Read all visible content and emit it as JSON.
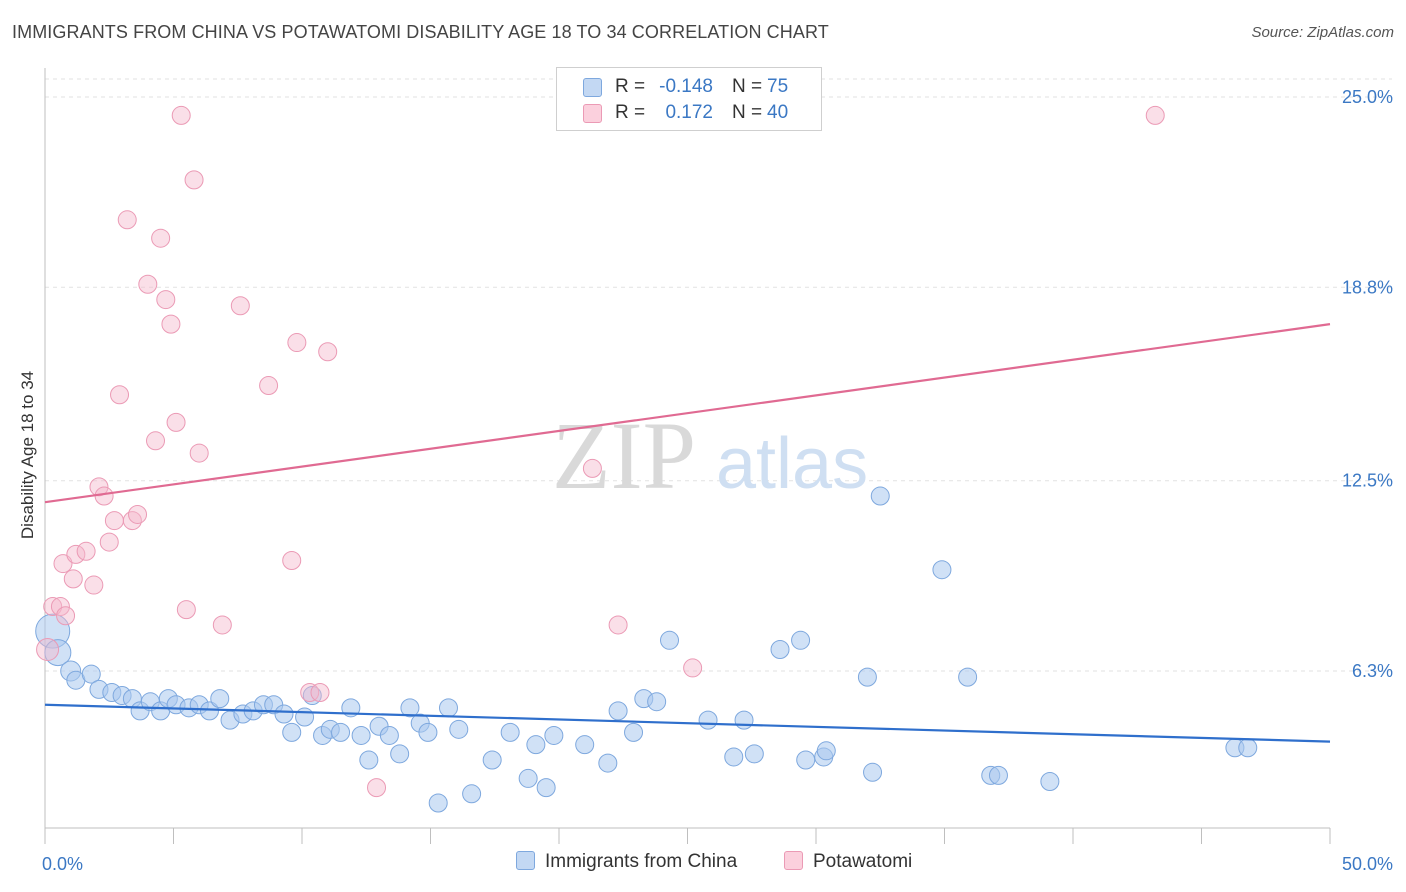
{
  "title": "IMMIGRANTS FROM CHINA VS POTAWATOMI DISABILITY AGE 18 TO 34 CORRELATION CHART",
  "source": "Source: ZipAtlas.com",
  "watermark": {
    "zip": "ZIP",
    "atlas": "atlas"
  },
  "legend_top": [
    {
      "r_label": "R =",
      "r_value": "-0.148",
      "n_label": "N =",
      "n_value": "75",
      "color": "#aac8ee"
    },
    {
      "r_label": "R =",
      "r_value": "0.172",
      "n_label": "N =",
      "n_value": "40",
      "color": "#f5b8cb"
    }
  ],
  "legend_bottom": [
    {
      "label": "Immigrants from China",
      "color": "#aac8ee"
    },
    {
      "label": "Potawatomi",
      "color": "#f5b8cb"
    }
  ],
  "colors": {
    "blue": "#5b93d6",
    "blue_line": "#2f6fcc",
    "pink": "#e891ad",
    "pink_line": "#e06a92",
    "tick_text": "#3b78c4"
  },
  "chart_data": {
    "type": "scatter",
    "title": "IMMIGRANTS FROM CHINA VS POTAWATOMI DISABILITY AGE 18 TO 34 CORRELATION CHART",
    "xlabel": "",
    "ylabel": "Disability Age 18 to 34",
    "xlim": [
      0,
      50
    ],
    "ylim": [
      0,
      27
    ],
    "x_tick_labels": [
      "0.0%",
      "50.0%"
    ],
    "y_ticks": [
      6.3,
      12.5,
      18.8,
      25.0
    ],
    "y_tick_labels": [
      "6.3%",
      "12.5%",
      "18.8%",
      "25.0%"
    ],
    "grid": true,
    "legend_position": "top-center",
    "series": [
      {
        "name": "Immigrants from China",
        "trend": {
          "x": [
            0,
            50
          ],
          "y": [
            5.2,
            4.0
          ]
        },
        "points": [
          [
            0.3,
            7.6
          ],
          [
            0.5,
            6.9
          ],
          [
            1.0,
            6.3
          ],
          [
            1.2,
            6.0
          ],
          [
            1.8,
            6.2
          ],
          [
            2.1,
            5.7
          ],
          [
            2.6,
            5.6
          ],
          [
            3.0,
            5.5
          ],
          [
            3.4,
            5.4
          ],
          [
            3.7,
            5.0
          ],
          [
            4.1,
            5.3
          ],
          [
            4.5,
            5.0
          ],
          [
            4.8,
            5.4
          ],
          [
            5.1,
            5.2
          ],
          [
            5.6,
            5.1
          ],
          [
            6.0,
            5.2
          ],
          [
            6.4,
            5.0
          ],
          [
            6.8,
            5.4
          ],
          [
            7.2,
            4.7
          ],
          [
            7.7,
            4.9
          ],
          [
            8.1,
            5.0
          ],
          [
            8.5,
            5.2
          ],
          [
            8.9,
            5.2
          ],
          [
            9.3,
            4.9
          ],
          [
            9.6,
            4.3
          ],
          [
            10.1,
            4.8
          ],
          [
            10.4,
            5.5
          ],
          [
            10.8,
            4.2
          ],
          [
            11.1,
            4.4
          ],
          [
            11.5,
            4.3
          ],
          [
            11.9,
            5.1
          ],
          [
            12.3,
            4.2
          ],
          [
            12.6,
            3.4
          ],
          [
            13.0,
            4.5
          ],
          [
            13.4,
            4.2
          ],
          [
            13.8,
            3.6
          ],
          [
            14.2,
            5.1
          ],
          [
            14.6,
            4.6
          ],
          [
            14.9,
            4.3
          ],
          [
            15.3,
            2.0
          ],
          [
            15.7,
            5.1
          ],
          [
            16.1,
            4.4
          ],
          [
            16.6,
            2.3
          ],
          [
            17.4,
            3.4
          ],
          [
            18.1,
            4.3
          ],
          [
            18.8,
            2.8
          ],
          [
            19.1,
            3.9
          ],
          [
            19.5,
            2.5
          ],
          [
            19.8,
            4.2
          ],
          [
            21.0,
            3.9
          ],
          [
            21.9,
            3.3
          ],
          [
            22.3,
            5.0
          ],
          [
            22.9,
            4.3
          ],
          [
            23.3,
            5.4
          ],
          [
            23.8,
            5.3
          ],
          [
            24.3,
            7.3
          ],
          [
            25.8,
            4.7
          ],
          [
            26.8,
            3.5
          ],
          [
            27.2,
            4.7
          ],
          [
            27.6,
            3.6
          ],
          [
            28.6,
            7.0
          ],
          [
            29.4,
            7.3
          ],
          [
            29.6,
            3.4
          ],
          [
            30.3,
            3.5
          ],
          [
            30.4,
            3.7
          ],
          [
            32.0,
            6.1
          ],
          [
            32.2,
            3.0
          ],
          [
            32.5,
            12.0
          ],
          [
            34.9,
            9.6
          ],
          [
            35.9,
            6.1
          ],
          [
            36.8,
            2.9
          ],
          [
            37.1,
            2.9
          ],
          [
            39.1,
            2.7
          ],
          [
            46.3,
            3.8
          ],
          [
            46.8,
            3.8
          ]
        ]
      },
      {
        "name": "Potawatomi",
        "trend": {
          "x": [
            0,
            50
          ],
          "y": [
            11.8,
            17.6
          ]
        },
        "points": [
          [
            0.1,
            7.0
          ],
          [
            0.3,
            8.4
          ],
          [
            0.6,
            8.4
          ],
          [
            0.8,
            8.1
          ],
          [
            0.7,
            9.8
          ],
          [
            1.2,
            10.1
          ],
          [
            1.1,
            9.3
          ],
          [
            1.6,
            10.2
          ],
          [
            1.9,
            9.1
          ],
          [
            2.1,
            12.3
          ],
          [
            2.3,
            12.0
          ],
          [
            2.5,
            10.5
          ],
          [
            2.7,
            11.2
          ],
          [
            2.9,
            15.3
          ],
          [
            3.2,
            21.0
          ],
          [
            3.4,
            11.2
          ],
          [
            3.6,
            11.4
          ],
          [
            4.0,
            18.9
          ],
          [
            4.3,
            13.8
          ],
          [
            4.5,
            20.4
          ],
          [
            4.7,
            18.4
          ],
          [
            4.9,
            17.6
          ],
          [
            5.1,
            14.4
          ],
          [
            5.3,
            24.4
          ],
          [
            5.5,
            8.3
          ],
          [
            5.8,
            22.3
          ],
          [
            6.0,
            13.4
          ],
          [
            6.9,
            7.8
          ],
          [
            7.6,
            18.2
          ],
          [
            8.7,
            15.6
          ],
          [
            9.6,
            9.9
          ],
          [
            9.8,
            17.0
          ],
          [
            10.3,
            5.6
          ],
          [
            10.7,
            5.6
          ],
          [
            11.0,
            16.7
          ],
          [
            12.9,
            2.5
          ],
          [
            21.3,
            12.9
          ],
          [
            22.3,
            7.8
          ],
          [
            25.2,
            6.4
          ],
          [
            43.2,
            24.4
          ]
        ]
      }
    ]
  }
}
